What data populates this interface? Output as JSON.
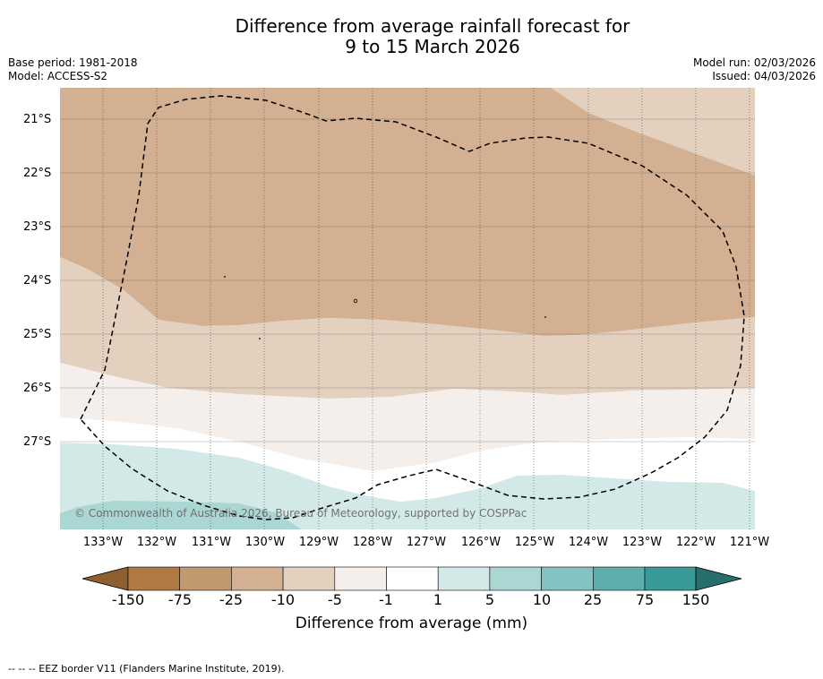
{
  "title": {
    "line1": "Difference from average rainfall forecast for",
    "line2": "9 to 15 March 2026"
  },
  "meta": {
    "base_period": "Base period: 1981-2018",
    "model": "Model: ACCESS-S2",
    "model_run": "Model run: 02/03/2026",
    "issued": "Issued: 04/03/2026"
  },
  "axes": {
    "lat_labels": [
      "21°S",
      "22°S",
      "23°S",
      "24°S",
      "25°S",
      "26°S",
      "27°S"
    ],
    "lon_labels": [
      "133°W",
      "132°W",
      "131°W",
      "130°W",
      "129°W",
      "128°W",
      "127°W",
      "126°W",
      "125°W",
      "124°W",
      "123°W",
      "122°W",
      "121°W"
    ]
  },
  "copyright": "© Commonwealth of Australia 2026, Bureau of Meteorology, supported by COSPPac",
  "colorbar": {
    "labels": [
      "-150",
      "-75",
      "-25",
      "-10",
      "-5",
      "-1",
      "1",
      "5",
      "10",
      "25",
      "75",
      "150"
    ],
    "colors": [
      "#8f5f30",
      "#b07a44",
      "#c2986e",
      "#d2b091",
      "#e3d0bf",
      "#f5efeb",
      "#ffffff",
      "#d3e9e7",
      "#aad6d4",
      "#84c3c1",
      "#5daeac",
      "#399a98",
      "#276e6c"
    ],
    "title": "Difference from average (mm)"
  },
  "footnote": "--  --  -- EEZ border V11 (Flanders Marine Institute, 2019).",
  "map_colors": {
    "dry_moderate": "#d2b091",
    "dry_light": "#e3d0bf",
    "near_neutral_dry": "#f5efeb",
    "neutral": "#ffffff",
    "wet_light": "#d3e9e7",
    "wet_moderate": "#aad6d4"
  }
}
